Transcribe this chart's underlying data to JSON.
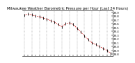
{
  "title": "Milwaukee Weather Barometric Pressure per Hour (Last 24 Hours)",
  "hours": [
    0,
    1,
    2,
    3,
    4,
    5,
    6,
    7,
    8,
    9,
    10,
    11,
    12,
    13,
    14,
    15,
    16,
    17,
    18,
    19,
    20,
    21,
    22,
    23
  ],
  "pressure": [
    29.82,
    29.85,
    29.83,
    29.8,
    29.78,
    29.75,
    29.72,
    29.68,
    29.64,
    29.58,
    29.52,
    29.6,
    29.62,
    29.58,
    29.48,
    29.38,
    29.28,
    29.18,
    29.1,
    29.05,
    29.0,
    28.95,
    28.9,
    28.82
  ],
  "ymin": 28.75,
  "ymax": 29.95,
  "line_color": "#cc0000",
  "marker_color": "#000000",
  "bg_color": "#ffffff",
  "grid_color": "#888888",
  "ytick_values": [
    28.8,
    28.9,
    29.0,
    29.1,
    29.2,
    29.3,
    29.4,
    29.5,
    29.6,
    29.7,
    29.8,
    29.9
  ],
  "title_fontsize": 3.8,
  "tick_fontsize": 2.8
}
